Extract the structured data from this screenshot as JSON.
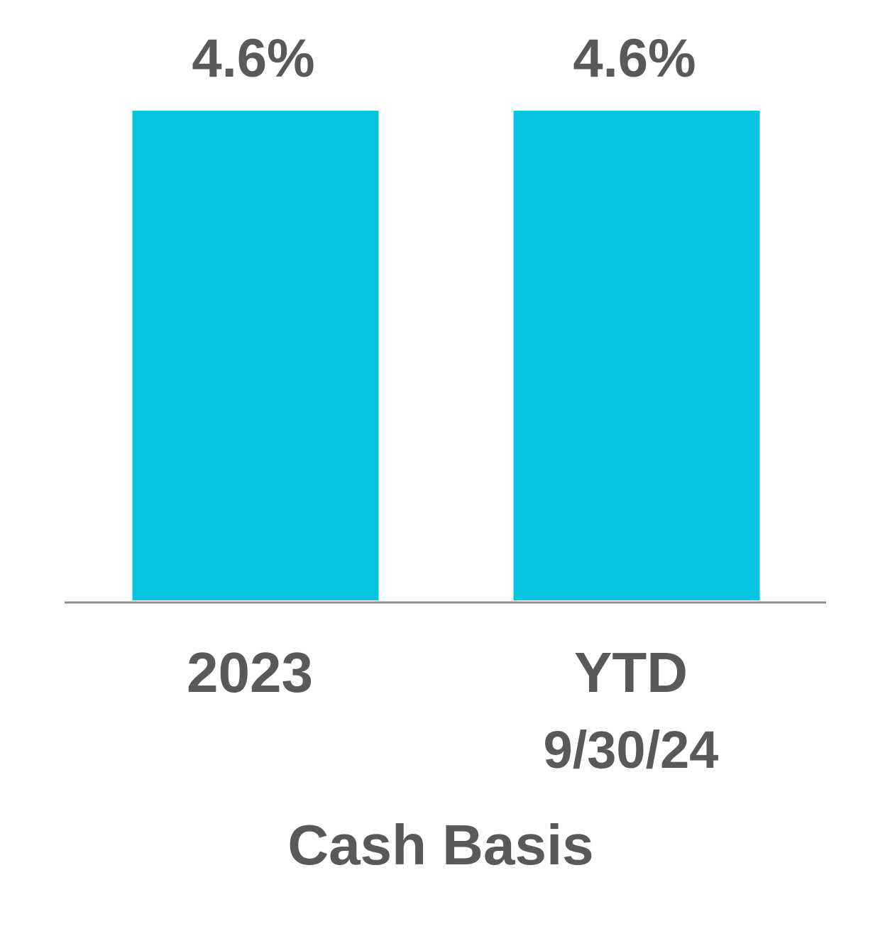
{
  "chart_data": {
    "type": "bar",
    "title": "",
    "xlabel": "Cash Basis",
    "ylabel": "",
    "categories": [
      [
        "2023"
      ],
      [
        "YTD",
        "9/30/24"
      ]
    ],
    "values": [
      4.6,
      4.6
    ],
    "data_labels": [
      "4.6%",
      "4.6%"
    ],
    "ylim": [
      0,
      4.6
    ],
    "grid": false,
    "legend": "none",
    "colors": {
      "bar": "#06C3DF",
      "text": "#595959",
      "axis": "#8C8C8C"
    }
  }
}
